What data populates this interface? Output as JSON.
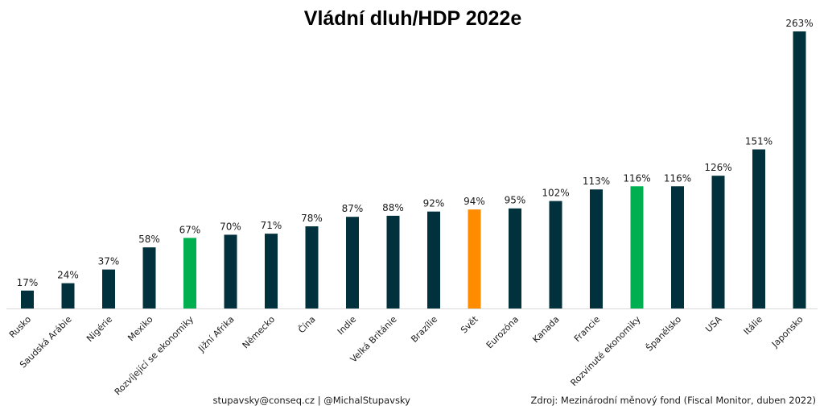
{
  "chart_data": {
    "type": "bar",
    "title": "Vládní dluh/HDP 2022e",
    "xlabel": "",
    "ylabel": "",
    "ylim": [
      0,
      263
    ],
    "grid": false,
    "categories": [
      "Rusko",
      "Saudská Arábie",
      "Nigérie",
      "Mexiko",
      "Rozvíjející se ekonomiky",
      "Jižní Afrika",
      "Německo",
      "Čína",
      "Indie",
      "Velká Británie",
      "Brazílie",
      "Svět",
      "Eurozóna",
      "Kanada",
      "Francie",
      "Rozvinuté ekonomiky",
      "Španělsko",
      "USA",
      "Itálie",
      "Japonsko"
    ],
    "values": [
      17,
      24,
      37,
      58,
      67,
      70,
      71,
      78,
      87,
      88,
      92,
      94,
      95,
      102,
      113,
      116,
      116,
      126,
      151,
      263
    ],
    "value_labels": [
      "17%",
      "24%",
      "37%",
      "58%",
      "67%",
      "70%",
      "71%",
      "78%",
      "87%",
      "88%",
      "92%",
      "94%",
      "95%",
      "102%",
      "113%",
      "116%",
      "116%",
      "126%",
      "151%",
      "263%"
    ],
    "bar_colors": [
      "#00313c",
      "#00313c",
      "#00313c",
      "#00313c",
      "#00b050",
      "#00313c",
      "#00313c",
      "#00313c",
      "#00313c",
      "#00313c",
      "#00313c",
      "#ff8c00",
      "#00313c",
      "#00313c",
      "#00313c",
      "#00b050",
      "#00313c",
      "#00313c",
      "#00313c",
      "#00313c"
    ]
  },
  "footer": {
    "contact": "stupavsky@conseq.cz  |  @MichalStupavsky",
    "source": "Zdroj: Mezinárodní měnový fond (Fiscal Monitor, duben 2022)"
  },
  "colors": {
    "default": "#00313c",
    "aggregate": "#00b050",
    "world": "#ff8c00",
    "axis": "#d9d9d9"
  }
}
